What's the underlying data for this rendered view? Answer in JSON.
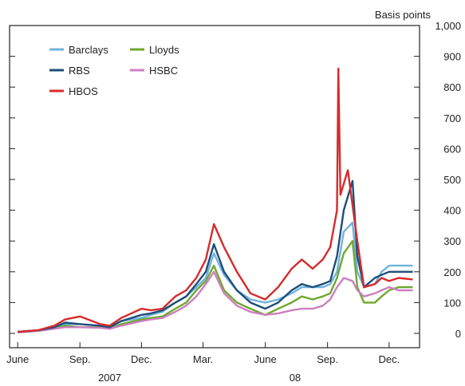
{
  "chart_data": {
    "type": "line",
    "title": "",
    "unit_label": "Basis points",
    "ylim": [
      0,
      1000
    ],
    "yticks": [
      {
        "value": 0,
        "label": "0"
      },
      {
        "value": 100,
        "label": "100"
      },
      {
        "value": 200,
        "label": "200"
      },
      {
        "value": 300,
        "label": "300"
      },
      {
        "value": 400,
        "label": "400"
      },
      {
        "value": 500,
        "label": "500"
      },
      {
        "value": 600,
        "label": "600"
      },
      {
        "value": 700,
        "label": "700"
      },
      {
        "value": 800,
        "label": "800"
      },
      {
        "value": 900,
        "label": "900"
      },
      {
        "value": 1000,
        "label": "1,000"
      }
    ],
    "xlim": [
      "2007-05-20",
      "2009-01-15"
    ],
    "xticks": [
      {
        "date": "2007-06-01",
        "label": "June"
      },
      {
        "date": "2007-09-01",
        "label": "Sep."
      },
      {
        "date": "2007-12-01",
        "label": "Dec."
      },
      {
        "date": "2008-03-01",
        "label": "Mar."
      },
      {
        "date": "2008-06-01",
        "label": "June"
      },
      {
        "date": "2008-09-01",
        "label": "Sep."
      },
      {
        "date": "2008-12-01",
        "label": "Dec."
      }
    ],
    "year_labels": [
      {
        "date": "2007-10-15",
        "label": "2007"
      },
      {
        "date": "2008-07-15",
        "label": "08"
      }
    ],
    "grid": false,
    "legend_position": "top-left",
    "series": [
      {
        "name": "Barclays",
        "color": "#6fb3dc",
        "points": [
          [
            "2007-06-01",
            5
          ],
          [
            "2007-07-01",
            10
          ],
          [
            "2007-07-25",
            20
          ],
          [
            "2007-08-10",
            30
          ],
          [
            "2007-09-01",
            30
          ],
          [
            "2007-10-01",
            25
          ],
          [
            "2007-10-15",
            20
          ],
          [
            "2007-11-01",
            40
          ],
          [
            "2007-12-01",
            50
          ],
          [
            "2007-12-15",
            60
          ],
          [
            "2008-01-01",
            70
          ],
          [
            "2008-01-20",
            100
          ],
          [
            "2008-02-05",
            120
          ],
          [
            "2008-02-20",
            150
          ],
          [
            "2008-03-05",
            180
          ],
          [
            "2008-03-17",
            260
          ],
          [
            "2008-04-01",
            190
          ],
          [
            "2008-04-20",
            140
          ],
          [
            "2008-05-10",
            110
          ],
          [
            "2008-06-01",
            100
          ],
          [
            "2008-06-20",
            110
          ],
          [
            "2008-07-10",
            130
          ],
          [
            "2008-07-25",
            150
          ],
          [
            "2008-08-10",
            150
          ],
          [
            "2008-08-25",
            150
          ],
          [
            "2008-09-05",
            160
          ],
          [
            "2008-09-15",
            200
          ],
          [
            "2008-09-25",
            330
          ],
          [
            "2008-10-08",
            360
          ],
          [
            "2008-10-15",
            200
          ],
          [
            "2008-10-25",
            150
          ],
          [
            "2008-11-10",
            160
          ],
          [
            "2008-11-20",
            200
          ],
          [
            "2008-12-01",
            220
          ],
          [
            "2008-12-15",
            220
          ],
          [
            "2009-01-05",
            220
          ]
        ]
      },
      {
        "name": "RBS",
        "color": "#1d4e7a",
        "points": [
          [
            "2007-06-01",
            5
          ],
          [
            "2007-07-01",
            10
          ],
          [
            "2007-07-25",
            20
          ],
          [
            "2007-08-10",
            35
          ],
          [
            "2007-09-01",
            30
          ],
          [
            "2007-10-01",
            25
          ],
          [
            "2007-10-15",
            20
          ],
          [
            "2007-11-01",
            40
          ],
          [
            "2007-12-01",
            60
          ],
          [
            "2007-12-15",
            65
          ],
          [
            "2008-01-01",
            75
          ],
          [
            "2008-01-20",
            100
          ],
          [
            "2008-02-05",
            120
          ],
          [
            "2008-02-20",
            160
          ],
          [
            "2008-03-05",
            200
          ],
          [
            "2008-03-17",
            290
          ],
          [
            "2008-04-01",
            200
          ],
          [
            "2008-04-20",
            140
          ],
          [
            "2008-05-10",
            100
          ],
          [
            "2008-06-01",
            80
          ],
          [
            "2008-06-20",
            100
          ],
          [
            "2008-07-10",
            140
          ],
          [
            "2008-07-25",
            160
          ],
          [
            "2008-08-10",
            150
          ],
          [
            "2008-08-25",
            160
          ],
          [
            "2008-09-05",
            170
          ],
          [
            "2008-09-15",
            250
          ],
          [
            "2008-09-25",
            400
          ],
          [
            "2008-10-08",
            495
          ],
          [
            "2008-10-15",
            250
          ],
          [
            "2008-10-25",
            150
          ],
          [
            "2008-11-10",
            180
          ],
          [
            "2008-11-20",
            190
          ],
          [
            "2008-12-01",
            200
          ],
          [
            "2008-12-15",
            200
          ],
          [
            "2009-01-05",
            200
          ]
        ]
      },
      {
        "name": "HBOS",
        "color": "#d62b2b",
        "points": [
          [
            "2007-06-01",
            5
          ],
          [
            "2007-07-01",
            10
          ],
          [
            "2007-07-25",
            25
          ],
          [
            "2007-08-10",
            45
          ],
          [
            "2007-09-01",
            55
          ],
          [
            "2007-10-01",
            30
          ],
          [
            "2007-10-15",
            25
          ],
          [
            "2007-11-01",
            50
          ],
          [
            "2007-12-01",
            80
          ],
          [
            "2007-12-15",
            75
          ],
          [
            "2008-01-01",
            80
          ],
          [
            "2008-01-20",
            120
          ],
          [
            "2008-02-05",
            140
          ],
          [
            "2008-02-20",
            180
          ],
          [
            "2008-03-05",
            240
          ],
          [
            "2008-03-17",
            355
          ],
          [
            "2008-04-01",
            280
          ],
          [
            "2008-04-20",
            200
          ],
          [
            "2008-05-10",
            130
          ],
          [
            "2008-06-01",
            110
          ],
          [
            "2008-06-20",
            150
          ],
          [
            "2008-07-10",
            210
          ],
          [
            "2008-07-25",
            240
          ],
          [
            "2008-08-10",
            210
          ],
          [
            "2008-08-25",
            240
          ],
          [
            "2008-09-05",
            280
          ],
          [
            "2008-09-15",
            400
          ],
          [
            "2008-09-17",
            860
          ],
          [
            "2008-09-20",
            450
          ],
          [
            "2008-10-01",
            530
          ],
          [
            "2008-10-15",
            300
          ],
          [
            "2008-10-25",
            150
          ],
          [
            "2008-11-10",
            160
          ],
          [
            "2008-11-20",
            180
          ],
          [
            "2008-12-01",
            170
          ],
          [
            "2008-12-15",
            180
          ],
          [
            "2009-01-05",
            175
          ]
        ]
      },
      {
        "name": "Lloyds",
        "color": "#6ea82f",
        "points": [
          [
            "2007-06-01",
            3
          ],
          [
            "2007-07-01",
            8
          ],
          [
            "2007-07-25",
            15
          ],
          [
            "2007-08-10",
            25
          ],
          [
            "2007-09-01",
            20
          ],
          [
            "2007-10-01",
            20
          ],
          [
            "2007-10-15",
            15
          ],
          [
            "2007-11-01",
            30
          ],
          [
            "2007-12-01",
            45
          ],
          [
            "2007-12-15",
            50
          ],
          [
            "2008-01-01",
            55
          ],
          [
            "2008-01-20",
            80
          ],
          [
            "2008-02-05",
            100
          ],
          [
            "2008-02-20",
            140
          ],
          [
            "2008-03-05",
            170
          ],
          [
            "2008-03-17",
            220
          ],
          [
            "2008-04-01",
            140
          ],
          [
            "2008-04-20",
            100
          ],
          [
            "2008-05-10",
            80
          ],
          [
            "2008-06-01",
            60
          ],
          [
            "2008-06-20",
            80
          ],
          [
            "2008-07-10",
            100
          ],
          [
            "2008-07-25",
            120
          ],
          [
            "2008-08-10",
            110
          ],
          [
            "2008-08-25",
            120
          ],
          [
            "2008-09-05",
            130
          ],
          [
            "2008-09-15",
            180
          ],
          [
            "2008-09-25",
            260
          ],
          [
            "2008-10-08",
            300
          ],
          [
            "2008-10-15",
            150
          ],
          [
            "2008-10-25",
            100
          ],
          [
            "2008-11-10",
            100
          ],
          [
            "2008-11-20",
            120
          ],
          [
            "2008-12-01",
            140
          ],
          [
            "2008-12-15",
            150
          ],
          [
            "2009-01-05",
            150
          ]
        ]
      },
      {
        "name": "HSBC",
        "color": "#cc7fbf",
        "points": [
          [
            "2007-06-01",
            3
          ],
          [
            "2007-07-01",
            8
          ],
          [
            "2007-07-25",
            15
          ],
          [
            "2007-08-10",
            20
          ],
          [
            "2007-09-01",
            20
          ],
          [
            "2007-10-01",
            18
          ],
          [
            "2007-10-15",
            15
          ],
          [
            "2007-11-01",
            25
          ],
          [
            "2007-12-01",
            40
          ],
          [
            "2007-12-15",
            45
          ],
          [
            "2008-01-01",
            50
          ],
          [
            "2008-01-20",
            70
          ],
          [
            "2008-02-05",
            90
          ],
          [
            "2008-02-20",
            120
          ],
          [
            "2008-03-05",
            160
          ],
          [
            "2008-03-17",
            200
          ],
          [
            "2008-04-01",
            130
          ],
          [
            "2008-04-20",
            90
          ],
          [
            "2008-05-10",
            70
          ],
          [
            "2008-06-01",
            60
          ],
          [
            "2008-06-20",
            65
          ],
          [
            "2008-07-10",
            75
          ],
          [
            "2008-07-25",
            80
          ],
          [
            "2008-08-10",
            80
          ],
          [
            "2008-08-25",
            90
          ],
          [
            "2008-09-05",
            110
          ],
          [
            "2008-09-15",
            150
          ],
          [
            "2008-09-25",
            180
          ],
          [
            "2008-10-08",
            170
          ],
          [
            "2008-10-15",
            140
          ],
          [
            "2008-10-25",
            120
          ],
          [
            "2008-11-10",
            130
          ],
          [
            "2008-11-20",
            140
          ],
          [
            "2008-12-01",
            150
          ],
          [
            "2008-12-15",
            140
          ],
          [
            "2009-01-05",
            140
          ]
        ]
      }
    ]
  }
}
